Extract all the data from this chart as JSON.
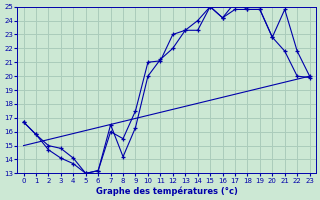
{
  "title": "Graphe des températures (°c)",
  "xlim": [
    -0.5,
    23.5
  ],
  "ylim": [
    13,
    25
  ],
  "xticks": [
    0,
    1,
    2,
    3,
    4,
    5,
    6,
    7,
    8,
    9,
    10,
    11,
    12,
    13,
    14,
    15,
    16,
    17,
    18,
    19,
    20,
    21,
    22,
    23
  ],
  "yticks": [
    13,
    14,
    15,
    16,
    17,
    18,
    19,
    20,
    21,
    22,
    23,
    24,
    25
  ],
  "bg_color": "#cce8d4",
  "grid_color": "#aaccbb",
  "line_color": "#0000aa",
  "line1_x": [
    0,
    1,
    2,
    3,
    4,
    5,
    6,
    7,
    8,
    9,
    10,
    11,
    12,
    13,
    14,
    15,
    16,
    17,
    18,
    19,
    20,
    21,
    22,
    23
  ],
  "line1_y": [
    16.7,
    15.8,
    15.0,
    14.8,
    14.1,
    13.0,
    13.2,
    16.0,
    15.5,
    17.5,
    21.0,
    21.1,
    23.0,
    23.3,
    23.3,
    25.0,
    24.2,
    24.8,
    24.8,
    24.8,
    22.8,
    21.8,
    20.0,
    19.9
  ],
  "line2_x": [
    0,
    1,
    2,
    3,
    4,
    5,
    6,
    7,
    8,
    9,
    10,
    11,
    12,
    13,
    14,
    15,
    16,
    17,
    18,
    19,
    20,
    21,
    22,
    23
  ],
  "line2_y": [
    16.7,
    15.8,
    14.7,
    14.1,
    13.7,
    13.0,
    13.2,
    16.5,
    14.2,
    16.3,
    20.0,
    21.2,
    22.0,
    23.3,
    24.0,
    25.0,
    24.2,
    25.3,
    24.8,
    24.8,
    22.8,
    24.8,
    21.8,
    20.0
  ],
  "line3_x": [
    0,
    23
  ],
  "line3_y": [
    15.0,
    20.0
  ]
}
